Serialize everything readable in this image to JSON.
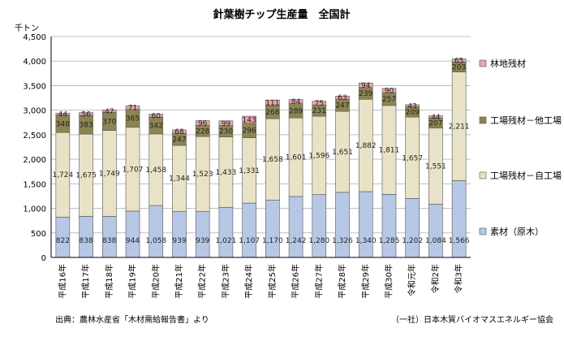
{
  "chart_data": {
    "type": "bar",
    "stacked": true,
    "title": "針葉樹チップ生産量　全国計",
    "unit_label": "千トン",
    "ylim": [
      0,
      4500
    ],
    "yticks": [
      0,
      500,
      1000,
      1500,
      2000,
      2500,
      3000,
      3500,
      4000,
      4500
    ],
    "ytick_labels": [
      "0",
      "500",
      "1,000",
      "1,500",
      "2,000",
      "2,500",
      "3,000",
      "3,500",
      "4,000",
      "4,500"
    ],
    "categories": [
      "平成16年",
      "平成17年",
      "平成18年",
      "平成19年",
      "平成20年",
      "平成21年",
      "平成22年",
      "平成23年",
      "平成24年",
      "平成25年",
      "平成26年",
      "平成27年",
      "平成28年",
      "平成29年",
      "平成30年",
      "令和元年",
      "令和2年",
      "令和3年"
    ],
    "series": [
      {
        "name": "素材（原木）",
        "color": "#b7c8e6",
        "values": [
          822,
          838,
          838,
          944,
          1058,
          939,
          939,
          1021,
          1107,
          1170,
          1242,
          1280,
          1326,
          1340,
          1285,
          1202,
          1084,
          1566
        ],
        "labels": [
          "822",
          "838",
          "838",
          "944",
          "1,058",
          "939",
          "939",
          "1,021",
          "1,107",
          "1,170",
          "1,242",
          "1,280",
          "1,326",
          "1,340",
          "1,285",
          "1,202",
          "1,084",
          "1,566"
        ]
      },
      {
        "name": "工場残材－自工場",
        "color": "#e8e3c6",
        "values": [
          1724,
          1675,
          1749,
          1707,
          1458,
          1344,
          1523,
          1433,
          1331,
          1658,
          1601,
          1596,
          1651,
          1882,
          1811,
          1657,
          1551,
          2211
        ],
        "labels": [
          "1,724",
          "1,675",
          "1,749",
          "1,707",
          "1,458",
          "1,344",
          "1,523",
          "1,433",
          "1,331",
          "1,658",
          "1,601",
          "1,596",
          "1,651",
          "1,882",
          "1,811",
          "1,657",
          "1,551",
          "2,211"
        ]
      },
      {
        "name": "工場残材－他工場",
        "color": "#8c8552",
        "values": [
          348,
          383,
          370,
          365,
          342,
          247,
          228,
          230,
          296,
          268,
          289,
          231,
          247,
          239,
          257,
          209,
          207,
          203
        ],
        "labels": [
          "348",
          "383",
          "370",
          "365",
          "342",
          "247",
          "228",
          "230",
          "296",
          "268",
          "289",
          "231",
          "247",
          "239",
          "257",
          "209",
          "207",
          "203"
        ]
      },
      {
        "name": "林地残材",
        "color": "#eaa3b0",
        "values": [
          44,
          56,
          47,
          71,
          60,
          68,
          96,
          99,
          143,
          111,
          84,
          75,
          63,
          94,
          90,
          43,
          44,
          65
        ],
        "labels": [
          "44",
          "56",
          "47",
          "71",
          "60",
          "68",
          "96",
          "99",
          "143",
          "111",
          "84",
          "75",
          "63",
          "94",
          "90",
          "43",
          "44",
          "65"
        ]
      }
    ],
    "legend_placement": "right",
    "grid": true
  },
  "footer": {
    "source": "出典：農林水産省「木材需給報告書」より",
    "credit": "（一社）日本木質バイオマスエネルギー協会"
  }
}
